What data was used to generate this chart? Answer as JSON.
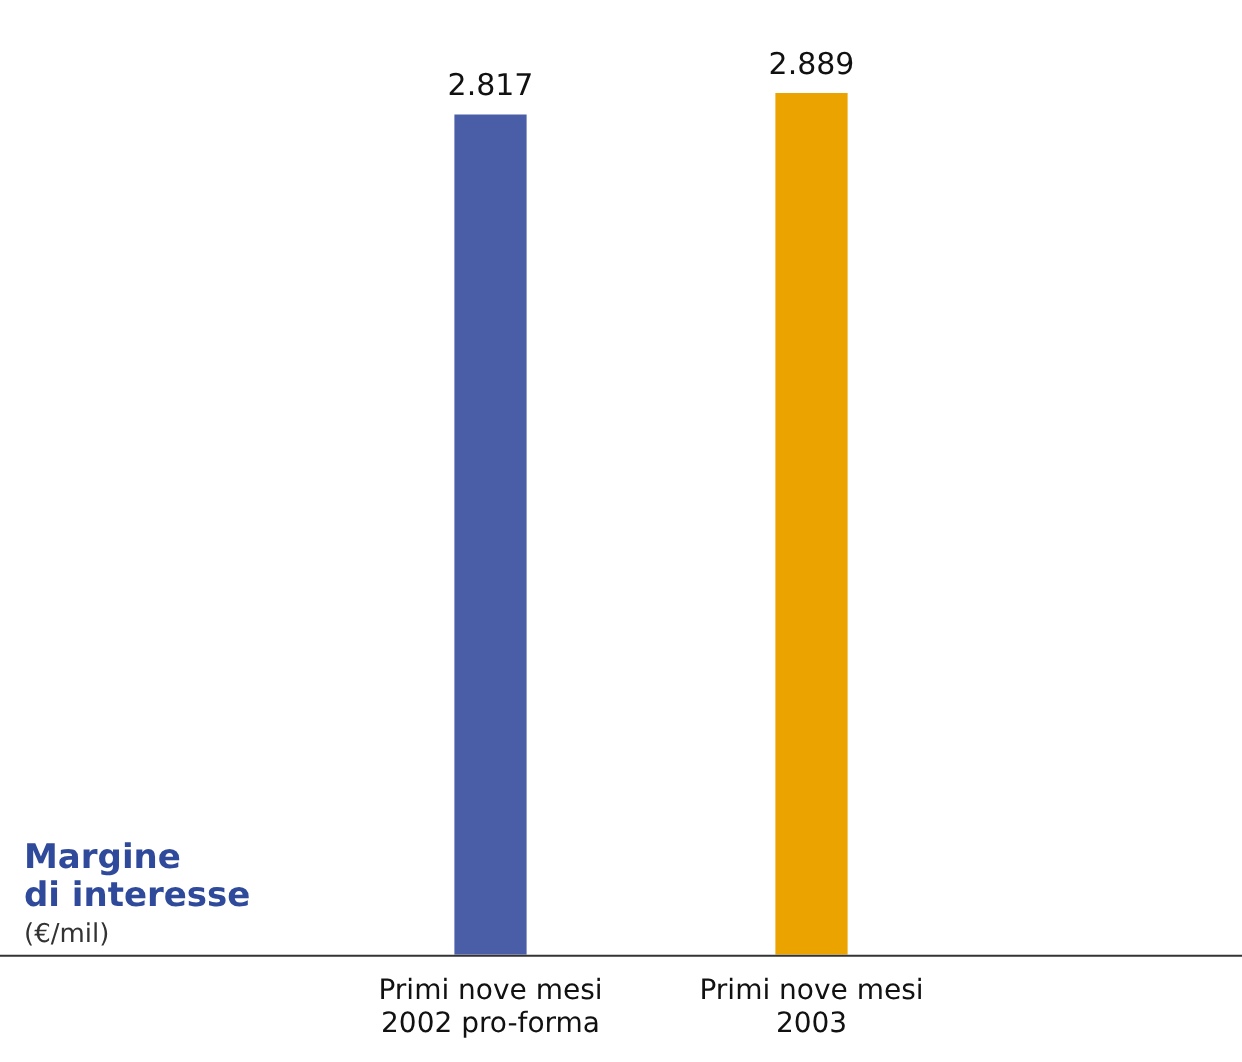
{
  "chart_data": {
    "type": "bar",
    "title": "Margine\ndi interesse",
    "subtitle": "(€/mil)",
    "categories": [
      "Primi nove mesi\n2002 pro-forma",
      "Primi nove mesi\n2003"
    ],
    "values": [
      2817,
      2889
    ],
    "colors": [
      "#4a5ea8",
      "#eba300"
    ],
    "value_labels": [
      "2.817",
      "2.889"
    ],
    "grid": false,
    "legend": false
  }
}
